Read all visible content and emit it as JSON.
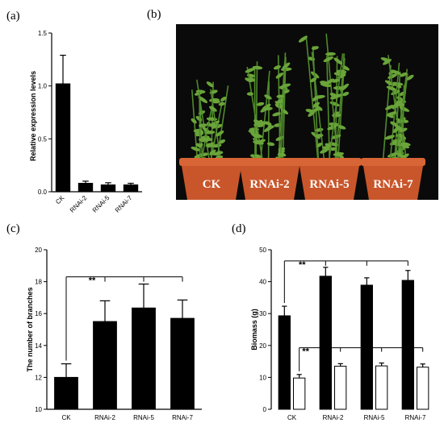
{
  "panels": {
    "a": "(a)",
    "b": "(b)",
    "c": "(c)",
    "d": "(d)"
  },
  "photo": {
    "pot_labels": [
      "CK",
      "RNAi-2",
      "RNAi-5",
      "RNAi-7"
    ],
    "colors": {
      "background": "#0a0a0a",
      "pot": "#c8562a",
      "plant": "#6aa43a"
    }
  },
  "chart_data": [
    {
      "type": "bar",
      "panel": "(a)",
      "categories": [
        "CK",
        "RNAi-2",
        "RNAi-5",
        "RNAi-7"
      ],
      "values": [
        1.02,
        0.08,
        0.065,
        0.065
      ],
      "errors": [
        0.27,
        0.02,
        0.02,
        0.015
      ],
      "ylabel": "Relative expression levels",
      "ylim": [
        0,
        1.5
      ],
      "yticks": [
        "0.0",
        "0.5",
        "1.0",
        "1.5"
      ],
      "bar_color": "#000000"
    },
    {
      "type": "bar",
      "panel": "(c)",
      "categories": [
        "CK",
        "RNAi-2",
        "RNAi-5",
        "RNAi-7"
      ],
      "values": [
        12.0,
        15.5,
        16.35,
        15.7
      ],
      "errors": [
        0.85,
        1.3,
        1.5,
        1.15
      ],
      "ylabel": "The number of branches",
      "ylim": [
        10,
        20
      ],
      "yticks": [
        "10",
        "12",
        "14",
        "16",
        "18",
        "20"
      ],
      "significance": "**",
      "bar_color": "#000000"
    },
    {
      "type": "bar",
      "panel": "(d)",
      "categories": [
        "CK",
        "RNAi-2",
        "RNAi-5",
        "RNAi-7"
      ],
      "series": [
        {
          "values": [
            29.3,
            41.7,
            38.9,
            40.4
          ],
          "errors": [
            3.0,
            2.8,
            2.3,
            3.1
          ],
          "color": "#000000"
        },
        {
          "values": [
            9.8,
            13.5,
            13.6,
            13.2
          ],
          "errors": [
            1.1,
            0.8,
            0.9,
            1.0
          ],
          "color": "#ffffff"
        }
      ],
      "ylabel": "Biomass (g)",
      "ylim": [
        0,
        50
      ],
      "yticks": [
        "0",
        "10",
        "20",
        "30",
        "40",
        "50"
      ],
      "significance": [
        "**",
        "**"
      ]
    }
  ]
}
